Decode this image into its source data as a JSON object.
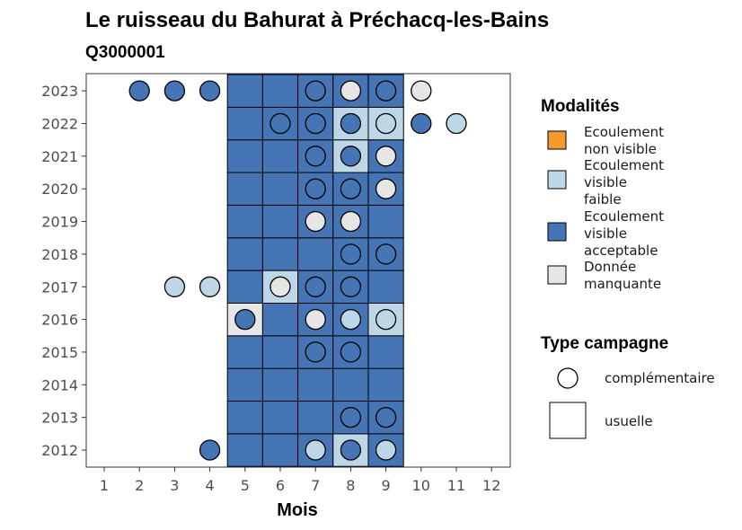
{
  "title": "Le ruisseau du Bahurat à Préchacq-les-Bains",
  "subtitle": "Q3000001",
  "chart_data": {
    "type": "heatmap",
    "xlabel": "Mois",
    "x_ticks": [
      "1",
      "2",
      "3",
      "4",
      "5",
      "6",
      "7",
      "8",
      "9",
      "10",
      "11",
      "12"
    ],
    "y_ticks": [
      "2012",
      "2013",
      "2014",
      "2015",
      "2016",
      "2017",
      "2018",
      "2019",
      "2020",
      "2021",
      "2022",
      "2023"
    ],
    "colors": {
      "non_visible": "#f59b2d",
      "faible": "#bdd7e7",
      "acceptable": "#4575b4",
      "manquante": "#e6e6e6"
    },
    "usuelle": [
      {
        "year": 2012,
        "month": 5,
        "modalite": "acceptable"
      },
      {
        "year": 2012,
        "month": 6,
        "modalite": "acceptable"
      },
      {
        "year": 2012,
        "month": 7,
        "modalite": "acceptable"
      },
      {
        "year": 2012,
        "month": 8,
        "modalite": "faible"
      },
      {
        "year": 2012,
        "month": 9,
        "modalite": "acceptable"
      },
      {
        "year": 2013,
        "month": 5,
        "modalite": "acceptable"
      },
      {
        "year": 2013,
        "month": 6,
        "modalite": "acceptable"
      },
      {
        "year": 2013,
        "month": 7,
        "modalite": "acceptable"
      },
      {
        "year": 2013,
        "month": 8,
        "modalite": "acceptable"
      },
      {
        "year": 2013,
        "month": 9,
        "modalite": "acceptable"
      },
      {
        "year": 2014,
        "month": 5,
        "modalite": "acceptable"
      },
      {
        "year": 2014,
        "month": 6,
        "modalite": "acceptable"
      },
      {
        "year": 2014,
        "month": 7,
        "modalite": "acceptable"
      },
      {
        "year": 2014,
        "month": 8,
        "modalite": "acceptable"
      },
      {
        "year": 2014,
        "month": 9,
        "modalite": "acceptable"
      },
      {
        "year": 2015,
        "month": 5,
        "modalite": "acceptable"
      },
      {
        "year": 2015,
        "month": 6,
        "modalite": "acceptable"
      },
      {
        "year": 2015,
        "month": 7,
        "modalite": "acceptable"
      },
      {
        "year": 2015,
        "month": 8,
        "modalite": "acceptable"
      },
      {
        "year": 2015,
        "month": 9,
        "modalite": "acceptable"
      },
      {
        "year": 2016,
        "month": 5,
        "modalite": "manquante"
      },
      {
        "year": 2016,
        "month": 6,
        "modalite": "acceptable"
      },
      {
        "year": 2016,
        "month": 7,
        "modalite": "acceptable"
      },
      {
        "year": 2016,
        "month": 8,
        "modalite": "acceptable"
      },
      {
        "year": 2016,
        "month": 9,
        "modalite": "faible"
      },
      {
        "year": 2017,
        "month": 5,
        "modalite": "acceptable"
      },
      {
        "year": 2017,
        "month": 6,
        "modalite": "faible"
      },
      {
        "year": 2017,
        "month": 7,
        "modalite": "acceptable"
      },
      {
        "year": 2017,
        "month": 8,
        "modalite": "acceptable"
      },
      {
        "year": 2017,
        "month": 9,
        "modalite": "acceptable"
      },
      {
        "year": 2018,
        "month": 5,
        "modalite": "acceptable"
      },
      {
        "year": 2018,
        "month": 6,
        "modalite": "acceptable"
      },
      {
        "year": 2018,
        "month": 7,
        "modalite": "acceptable"
      },
      {
        "year": 2018,
        "month": 8,
        "modalite": "acceptable"
      },
      {
        "year": 2018,
        "month": 9,
        "modalite": "acceptable"
      },
      {
        "year": 2019,
        "month": 5,
        "modalite": "acceptable"
      },
      {
        "year": 2019,
        "month": 6,
        "modalite": "acceptable"
      },
      {
        "year": 2019,
        "month": 7,
        "modalite": "acceptable"
      },
      {
        "year": 2019,
        "month": 8,
        "modalite": "acceptable"
      },
      {
        "year": 2019,
        "month": 9,
        "modalite": "acceptable"
      },
      {
        "year": 2020,
        "month": 5,
        "modalite": "acceptable"
      },
      {
        "year": 2020,
        "month": 6,
        "modalite": "acceptable"
      },
      {
        "year": 2020,
        "month": 7,
        "modalite": "acceptable"
      },
      {
        "year": 2020,
        "month": 8,
        "modalite": "acceptable"
      },
      {
        "year": 2020,
        "month": 9,
        "modalite": "acceptable"
      },
      {
        "year": 2021,
        "month": 5,
        "modalite": "acceptable"
      },
      {
        "year": 2021,
        "month": 6,
        "modalite": "acceptable"
      },
      {
        "year": 2021,
        "month": 7,
        "modalite": "acceptable"
      },
      {
        "year": 2021,
        "month": 8,
        "modalite": "faible"
      },
      {
        "year": 2021,
        "month": 9,
        "modalite": "acceptable"
      },
      {
        "year": 2022,
        "month": 5,
        "modalite": "acceptable"
      },
      {
        "year": 2022,
        "month": 6,
        "modalite": "acceptable"
      },
      {
        "year": 2022,
        "month": 7,
        "modalite": "acceptable"
      },
      {
        "year": 2022,
        "month": 8,
        "modalite": "faible"
      },
      {
        "year": 2022,
        "month": 9,
        "modalite": "faible"
      },
      {
        "year": 2023,
        "month": 5,
        "modalite": "acceptable"
      },
      {
        "year": 2023,
        "month": 6,
        "modalite": "acceptable"
      },
      {
        "year": 2023,
        "month": 7,
        "modalite": "acceptable"
      },
      {
        "year": 2023,
        "month": 8,
        "modalite": "acceptable"
      },
      {
        "year": 2023,
        "month": 9,
        "modalite": "acceptable"
      }
    ],
    "complementaire": [
      {
        "year": 2023,
        "month": 2,
        "modalite": "acceptable"
      },
      {
        "year": 2023,
        "month": 3,
        "modalite": "acceptable"
      },
      {
        "year": 2023,
        "month": 4,
        "modalite": "acceptable"
      },
      {
        "year": 2023,
        "month": 7,
        "modalite": "acceptable"
      },
      {
        "year": 2023,
        "month": 8,
        "modalite": "manquante"
      },
      {
        "year": 2023,
        "month": 9,
        "modalite": "acceptable"
      },
      {
        "year": 2023,
        "month": 10,
        "modalite": "manquante"
      },
      {
        "year": 2022,
        "month": 6,
        "modalite": "acceptable"
      },
      {
        "year": 2022,
        "month": 7,
        "modalite": "acceptable"
      },
      {
        "year": 2022,
        "month": 8,
        "modalite": "acceptable"
      },
      {
        "year": 2022,
        "month": 9,
        "modalite": "faible"
      },
      {
        "year": 2022,
        "month": 10,
        "modalite": "acceptable"
      },
      {
        "year": 2022,
        "month": 11,
        "modalite": "faible"
      },
      {
        "year": 2021,
        "month": 7,
        "modalite": "acceptable"
      },
      {
        "year": 2021,
        "month": 8,
        "modalite": "acceptable"
      },
      {
        "year": 2021,
        "month": 9,
        "modalite": "manquante"
      },
      {
        "year": 2020,
        "month": 7,
        "modalite": "acceptable"
      },
      {
        "year": 2020,
        "month": 8,
        "modalite": "acceptable"
      },
      {
        "year": 2020,
        "month": 9,
        "modalite": "manquante"
      },
      {
        "year": 2019,
        "month": 7,
        "modalite": "manquante"
      },
      {
        "year": 2019,
        "month": 8,
        "modalite": "manquante"
      },
      {
        "year": 2018,
        "month": 8,
        "modalite": "acceptable"
      },
      {
        "year": 2018,
        "month": 9,
        "modalite": "acceptable"
      },
      {
        "year": 2017,
        "month": 3,
        "modalite": "faible"
      },
      {
        "year": 2017,
        "month": 4,
        "modalite": "faible"
      },
      {
        "year": 2017,
        "month": 6,
        "modalite": "manquante"
      },
      {
        "year": 2017,
        "month": 7,
        "modalite": "acceptable"
      },
      {
        "year": 2017,
        "month": 8,
        "modalite": "acceptable"
      },
      {
        "year": 2016,
        "month": 5,
        "modalite": "acceptable"
      },
      {
        "year": 2016,
        "month": 7,
        "modalite": "manquante"
      },
      {
        "year": 2016,
        "month": 8,
        "modalite": "faible"
      },
      {
        "year": 2016,
        "month": 9,
        "modalite": "faible"
      },
      {
        "year": 2015,
        "month": 7,
        "modalite": "acceptable"
      },
      {
        "year": 2015,
        "month": 8,
        "modalite": "acceptable"
      },
      {
        "year": 2013,
        "month": 8,
        "modalite": "acceptable"
      },
      {
        "year": 2013,
        "month": 9,
        "modalite": "acceptable"
      },
      {
        "year": 2012,
        "month": 4,
        "modalite": "acceptable"
      },
      {
        "year": 2012,
        "month": 7,
        "modalite": "faible"
      },
      {
        "year": 2012,
        "month": 8,
        "modalite": "acceptable"
      },
      {
        "year": 2012,
        "month": 9,
        "modalite": "faible"
      }
    ],
    "legend": {
      "modalites_title": "Modalités",
      "modalites": [
        {
          "key": "non_visible",
          "lines": [
            "Ecoulement",
            "non visible"
          ]
        },
        {
          "key": "faible",
          "lines": [
            "Ecoulement",
            "visible",
            "faible"
          ]
        },
        {
          "key": "acceptable",
          "lines": [
            "Ecoulement",
            "visible",
            "acceptable"
          ]
        },
        {
          "key": "manquante",
          "lines": [
            "Donnée",
            "manquante"
          ]
        }
      ],
      "type_title": "Type campagne",
      "types": [
        {
          "key": "complementaire",
          "label": "complémentaire"
        },
        {
          "key": "usuelle",
          "label": "usuelle"
        }
      ]
    }
  }
}
